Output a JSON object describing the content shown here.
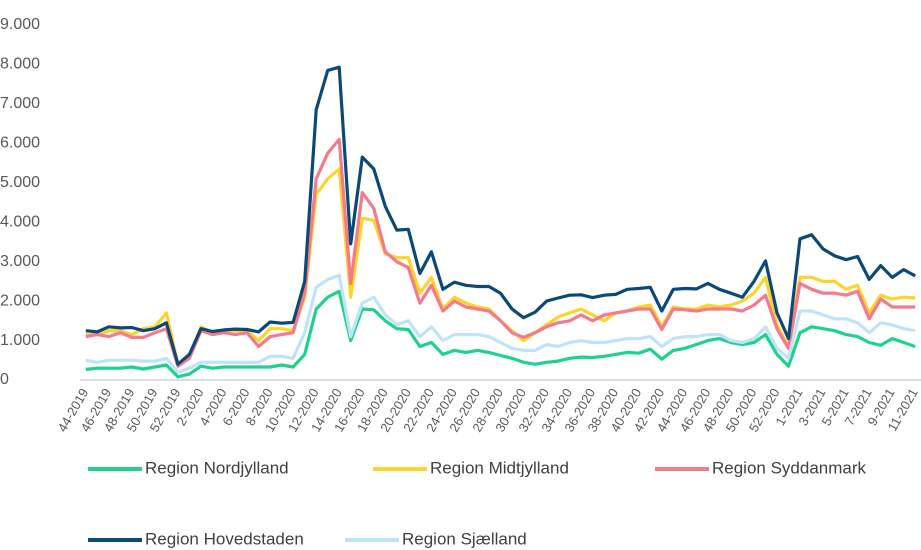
{
  "chart_data": {
    "type": "line",
    "categories": [
      "44-2019",
      null,
      "46-2019",
      null,
      "48-2019",
      null,
      "50-2019",
      null,
      "52-2019",
      null,
      "2-2020",
      null,
      "4-2020",
      null,
      "6-2020",
      null,
      "8-2020",
      null,
      "10-2020",
      null,
      "12-2020",
      null,
      "14-2020",
      null,
      "16-2020",
      null,
      "18-2020",
      null,
      "20-2020",
      null,
      "22-2020",
      null,
      "24-2020",
      null,
      "26-2020",
      null,
      "28-2020",
      null,
      "30-2020",
      null,
      "32-2020",
      null,
      "34-2020",
      null,
      "36-2020",
      null,
      "38-2020",
      null,
      "40-2020",
      null,
      "42-2020",
      null,
      "44-2020",
      null,
      "46-2020",
      null,
      "48-2020",
      null,
      "50-2020",
      null,
      "52-2020",
      null,
      "1-2021",
      null,
      "3-2021",
      null,
      "5-2021",
      null,
      "7-2021",
      null,
      "9-2021",
      null,
      "11-2021"
    ],
    "series": [
      {
        "name": "Region Nordjylland",
        "color": "#1ed18c",
        "values": [
          270,
          300,
          300,
          300,
          330,
          280,
          330,
          380,
          80,
          150,
          350,
          300,
          330,
          330,
          330,
          330,
          330,
          380,
          330,
          650,
          1800,
          2100,
          2250,
          1000,
          1800,
          1780,
          1500,
          1300,
          1280,
          850,
          950,
          650,
          750,
          700,
          750,
          700,
          620,
          550,
          450,
          400,
          450,
          480,
          550,
          580,
          570,
          600,
          650,
          700,
          680,
          780,
          530,
          750,
          800,
          900,
          1000,
          1050,
          950,
          900,
          950,
          1150,
          650,
          350,
          1200,
          1350,
          1300,
          1250,
          1150,
          1100,
          950,
          880,
          1050,
          950,
          850
        ]
      },
      {
        "name": "Region Midtjylland",
        "color": "#ffd42a",
        "values": [
          1150,
          1150,
          1250,
          1250,
          1150,
          1300,
          1350,
          1700,
          400,
          600,
          1350,
          1200,
          1250,
          1250,
          1250,
          1000,
          1300,
          1300,
          1250,
          2100,
          4700,
          5100,
          5350,
          2100,
          4100,
          4050,
          3200,
          3100,
          3100,
          2200,
          2600,
          1800,
          2100,
          1950,
          1850,
          1800,
          1500,
          1250,
          1000,
          1200,
          1400,
          1600,
          1700,
          1800,
          1650,
          1500,
          1700,
          1750,
          1850,
          1900,
          1350,
          1850,
          1800,
          1800,
          1900,
          1850,
          1900,
          2000,
          2200,
          2600,
          1400,
          850,
          2600,
          2600,
          2500,
          2500,
          2300,
          2400,
          1700,
          2150,
          2050,
          2100,
          2080
        ]
      },
      {
        "name": "Region Syddanmark",
        "color": "#f47a8c",
        "values": [
          1100,
          1150,
          1100,
          1200,
          1080,
          1080,
          1200,
          1300,
          350,
          550,
          1250,
          1150,
          1200,
          1150,
          1200,
          850,
          1100,
          1150,
          1200,
          2200,
          5100,
          5750,
          6100,
          2450,
          4750,
          4350,
          3250,
          3000,
          2850,
          1950,
          2400,
          1750,
          2000,
          1850,
          1800,
          1750,
          1500,
          1200,
          1080,
          1200,
          1350,
          1450,
          1500,
          1650,
          1500,
          1650,
          1700,
          1750,
          1800,
          1800,
          1280,
          1800,
          1780,
          1750,
          1800,
          1800,
          1800,
          1750,
          1900,
          2150,
          1300,
          800,
          2450,
          2300,
          2200,
          2200,
          2150,
          2250,
          1550,
          2050,
          1850,
          1850,
          1850
        ]
      },
      {
        "name": "Region Hovedstaden",
        "color": "#0b4a78",
        "values": [
          1250,
          1220,
          1350,
          1320,
          1330,
          1250,
          1300,
          1450,
          400,
          650,
          1300,
          1230,
          1270,
          1290,
          1280,
          1220,
          1470,
          1440,
          1460,
          2500,
          6850,
          7850,
          7930,
          3450,
          5650,
          5350,
          4400,
          3800,
          3820,
          2700,
          3250,
          2300,
          2480,
          2400,
          2370,
          2370,
          2200,
          1800,
          1580,
          1720,
          2000,
          2080,
          2150,
          2160,
          2090,
          2150,
          2170,
          2300,
          2320,
          2350,
          1750,
          2300,
          2320,
          2310,
          2450,
          2300,
          2200,
          2100,
          2500,
          3020,
          1700,
          1050,
          3580,
          3680,
          3320,
          3150,
          3050,
          3130,
          2550,
          2900,
          2600,
          2800,
          2640
        ]
      },
      {
        "name": "Region Sjælland",
        "color": "#bfe3fa",
        "values": [
          500,
          450,
          500,
          500,
          500,
          480,
          480,
          550,
          200,
          300,
          450,
          450,
          450,
          450,
          450,
          450,
          600,
          600,
          550,
          1200,
          2350,
          2550,
          2650,
          1100,
          1950,
          2100,
          1650,
          1400,
          1500,
          1100,
          1350,
          1000,
          1150,
          1150,
          1150,
          1100,
          950,
          800,
          750,
          750,
          900,
          850,
          950,
          1000,
          950,
          950,
          1000,
          1050,
          1050,
          1100,
          850,
          1050,
          1100,
          1100,
          1150,
          1150,
          1000,
          950,
          1050,
          1350,
          800,
          550,
          1750,
          1750,
          1650,
          1550,
          1550,
          1450,
          1200,
          1450,
          1400,
          1300,
          1250
        ]
      }
    ],
    "ylim": [
      0,
      9000
    ],
    "yticks": [
      0,
      {
        "value": 1000,
        "label": "1.000"
      },
      {
        "value": 2000,
        "label": "2.000"
      },
      {
        "value": 3000,
        "label": "3.000"
      },
      {
        "value": 4000,
        "label": "4.000"
      },
      {
        "value": 5000,
        "label": "5.000"
      },
      {
        "value": 6000,
        "label": "6.000"
      },
      {
        "value": 7000,
        "label": "7.000"
      },
      {
        "value": 8000,
        "label": "8.000"
      },
      {
        "value": 9000,
        "label": "9.000"
      }
    ],
    "grid": false
  }
}
